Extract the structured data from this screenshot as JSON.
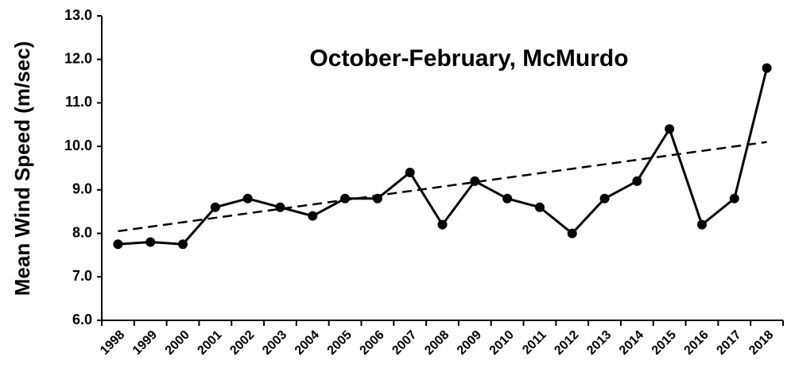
{
  "chart_data": {
    "type": "line",
    "title": "October-February, McMurdo",
    "y_label": "Mean Wind Speed (m/sec)",
    "categories": [
      "1998",
      "1999",
      "2000",
      "2001",
      "2002",
      "2003",
      "2004",
      "2005",
      "2006",
      "2007",
      "2008",
      "2009",
      "2010",
      "2011",
      "2012",
      "2013",
      "2014",
      "2015",
      "2016",
      "2017",
      "2018"
    ],
    "values": [
      7.75,
      7.8,
      7.75,
      8.6,
      8.8,
      8.6,
      8.4,
      8.8,
      8.8,
      9.4,
      8.2,
      9.2,
      8.8,
      8.6,
      8.0,
      8.8,
      9.2,
      10.4,
      8.2,
      8.8,
      11.8
    ],
    "color": "#000000",
    "trendline": {
      "start": 8.05,
      "end": 10.1,
      "style": "dashed"
    },
    "ylim": [
      6.0,
      13.0
    ],
    "yticks": [
      {
        "value": 6,
        "label": "6.0"
      },
      {
        "value": 7,
        "label": "7.0"
      },
      {
        "value": 8,
        "label": "8.0"
      },
      {
        "value": 9,
        "label": "9.0"
      },
      {
        "value": 10,
        "label": "10.0"
      },
      {
        "value": 11,
        "label": "11.0"
      },
      {
        "value": 12,
        "label": "12.0"
      },
      {
        "value": 13,
        "label": "13.0"
      }
    ],
    "grid": false
  }
}
